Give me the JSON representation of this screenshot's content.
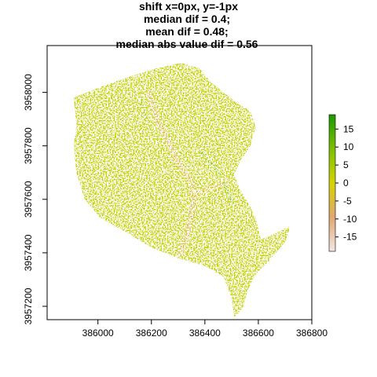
{
  "chart_data": {
    "type": "heatmap",
    "title_lines": [
      "shift x=0px, y=-1px",
      "median dif = 0.4;",
      "mean dif = 0.48;",
      "median abs value dif = 0.56"
    ],
    "xlabel": "",
    "ylabel": "",
    "x_ticks": [
      386000,
      386200,
      386400,
      386600,
      386800
    ],
    "y_ticks": [
      3957200,
      3957400,
      3957600,
      3957800,
      3958000
    ],
    "xlim": [
      385810,
      386800
    ],
    "ylim": [
      3957150,
      3958175
    ],
    "colorbar": {
      "ticks": [
        15,
        10,
        5,
        0,
        -5,
        -10,
        -15
      ],
      "range": [
        -19,
        19
      ],
      "colors": {
        "low": "#f2e6e6",
        "low_mid": "#e0a870",
        "mid": "#d4d400",
        "high_mid": "#7cc000",
        "high": "#1a9900"
      }
    },
    "dominant_value": 2,
    "region_outline_xy": [
      [
        385910,
        3957980
      ],
      [
        386010,
        3958020
      ],
      [
        386120,
        3958060
      ],
      [
        386220,
        3958090
      ],
      [
        386310,
        3958110
      ],
      [
        386380,
        3958090
      ],
      [
        386420,
        3958040
      ],
      [
        386470,
        3958000
      ],
      [
        386520,
        3957960
      ],
      [
        386570,
        3957930
      ],
      [
        386590,
        3957870
      ],
      [
        386570,
        3957800
      ],
      [
        386530,
        3957740
      ],
      [
        386510,
        3957690
      ],
      [
        386530,
        3957640
      ],
      [
        386560,
        3957590
      ],
      [
        386590,
        3957530
      ],
      [
        386610,
        3957450
      ],
      [
        386660,
        3957470
      ],
      [
        386720,
        3957500
      ],
      [
        386700,
        3957440
      ],
      [
        386640,
        3957370
      ],
      [
        386590,
        3957320
      ],
      [
        386560,
        3957260
      ],
      [
        386540,
        3957190
      ],
      [
        386510,
        3957160
      ],
      [
        386500,
        3957230
      ],
      [
        386470,
        3957310
      ],
      [
        386400,
        3957350
      ],
      [
        386300,
        3957380
      ],
      [
        386200,
        3957420
      ],
      [
        386100,
        3957480
      ],
      [
        386010,
        3957530
      ],
      [
        385950,
        3957600
      ],
      [
        385920,
        3957700
      ],
      [
        385910,
        3957800
      ],
      [
        385920,
        3957880
      ]
    ],
    "features_xy": [
      {
        "kind": "valley",
        "value": -6,
        "points": [
          [
            386190,
            3958000
          ],
          [
            386220,
            3957900
          ],
          [
            386260,
            3957820
          ],
          [
            386300,
            3957740
          ],
          [
            386340,
            3957680
          ],
          [
            386360,
            3957620
          ],
          [
            386350,
            3957540
          ],
          [
            386330,
            3957460
          ],
          [
            386310,
            3957400
          ]
        ]
      },
      {
        "kind": "valley",
        "value": -4,
        "points": [
          [
            386350,
            3957620
          ],
          [
            386420,
            3957640
          ],
          [
            386480,
            3957660
          ]
        ]
      },
      {
        "kind": "ridge",
        "value": 8,
        "points": [
          [
            386380,
            3957780
          ],
          [
            386420,
            3957740
          ],
          [
            386460,
            3957690
          ]
        ]
      },
      {
        "kind": "ridge",
        "value": 10,
        "points": [
          [
            386470,
            3957660
          ],
          [
            386490,
            3957620
          ],
          [
            386500,
            3957580
          ]
        ]
      },
      {
        "kind": "ridge",
        "value": 6,
        "points": [
          [
            386160,
            3957980
          ],
          [
            386170,
            3957940
          ],
          [
            386180,
            3957900
          ]
        ]
      }
    ]
  }
}
